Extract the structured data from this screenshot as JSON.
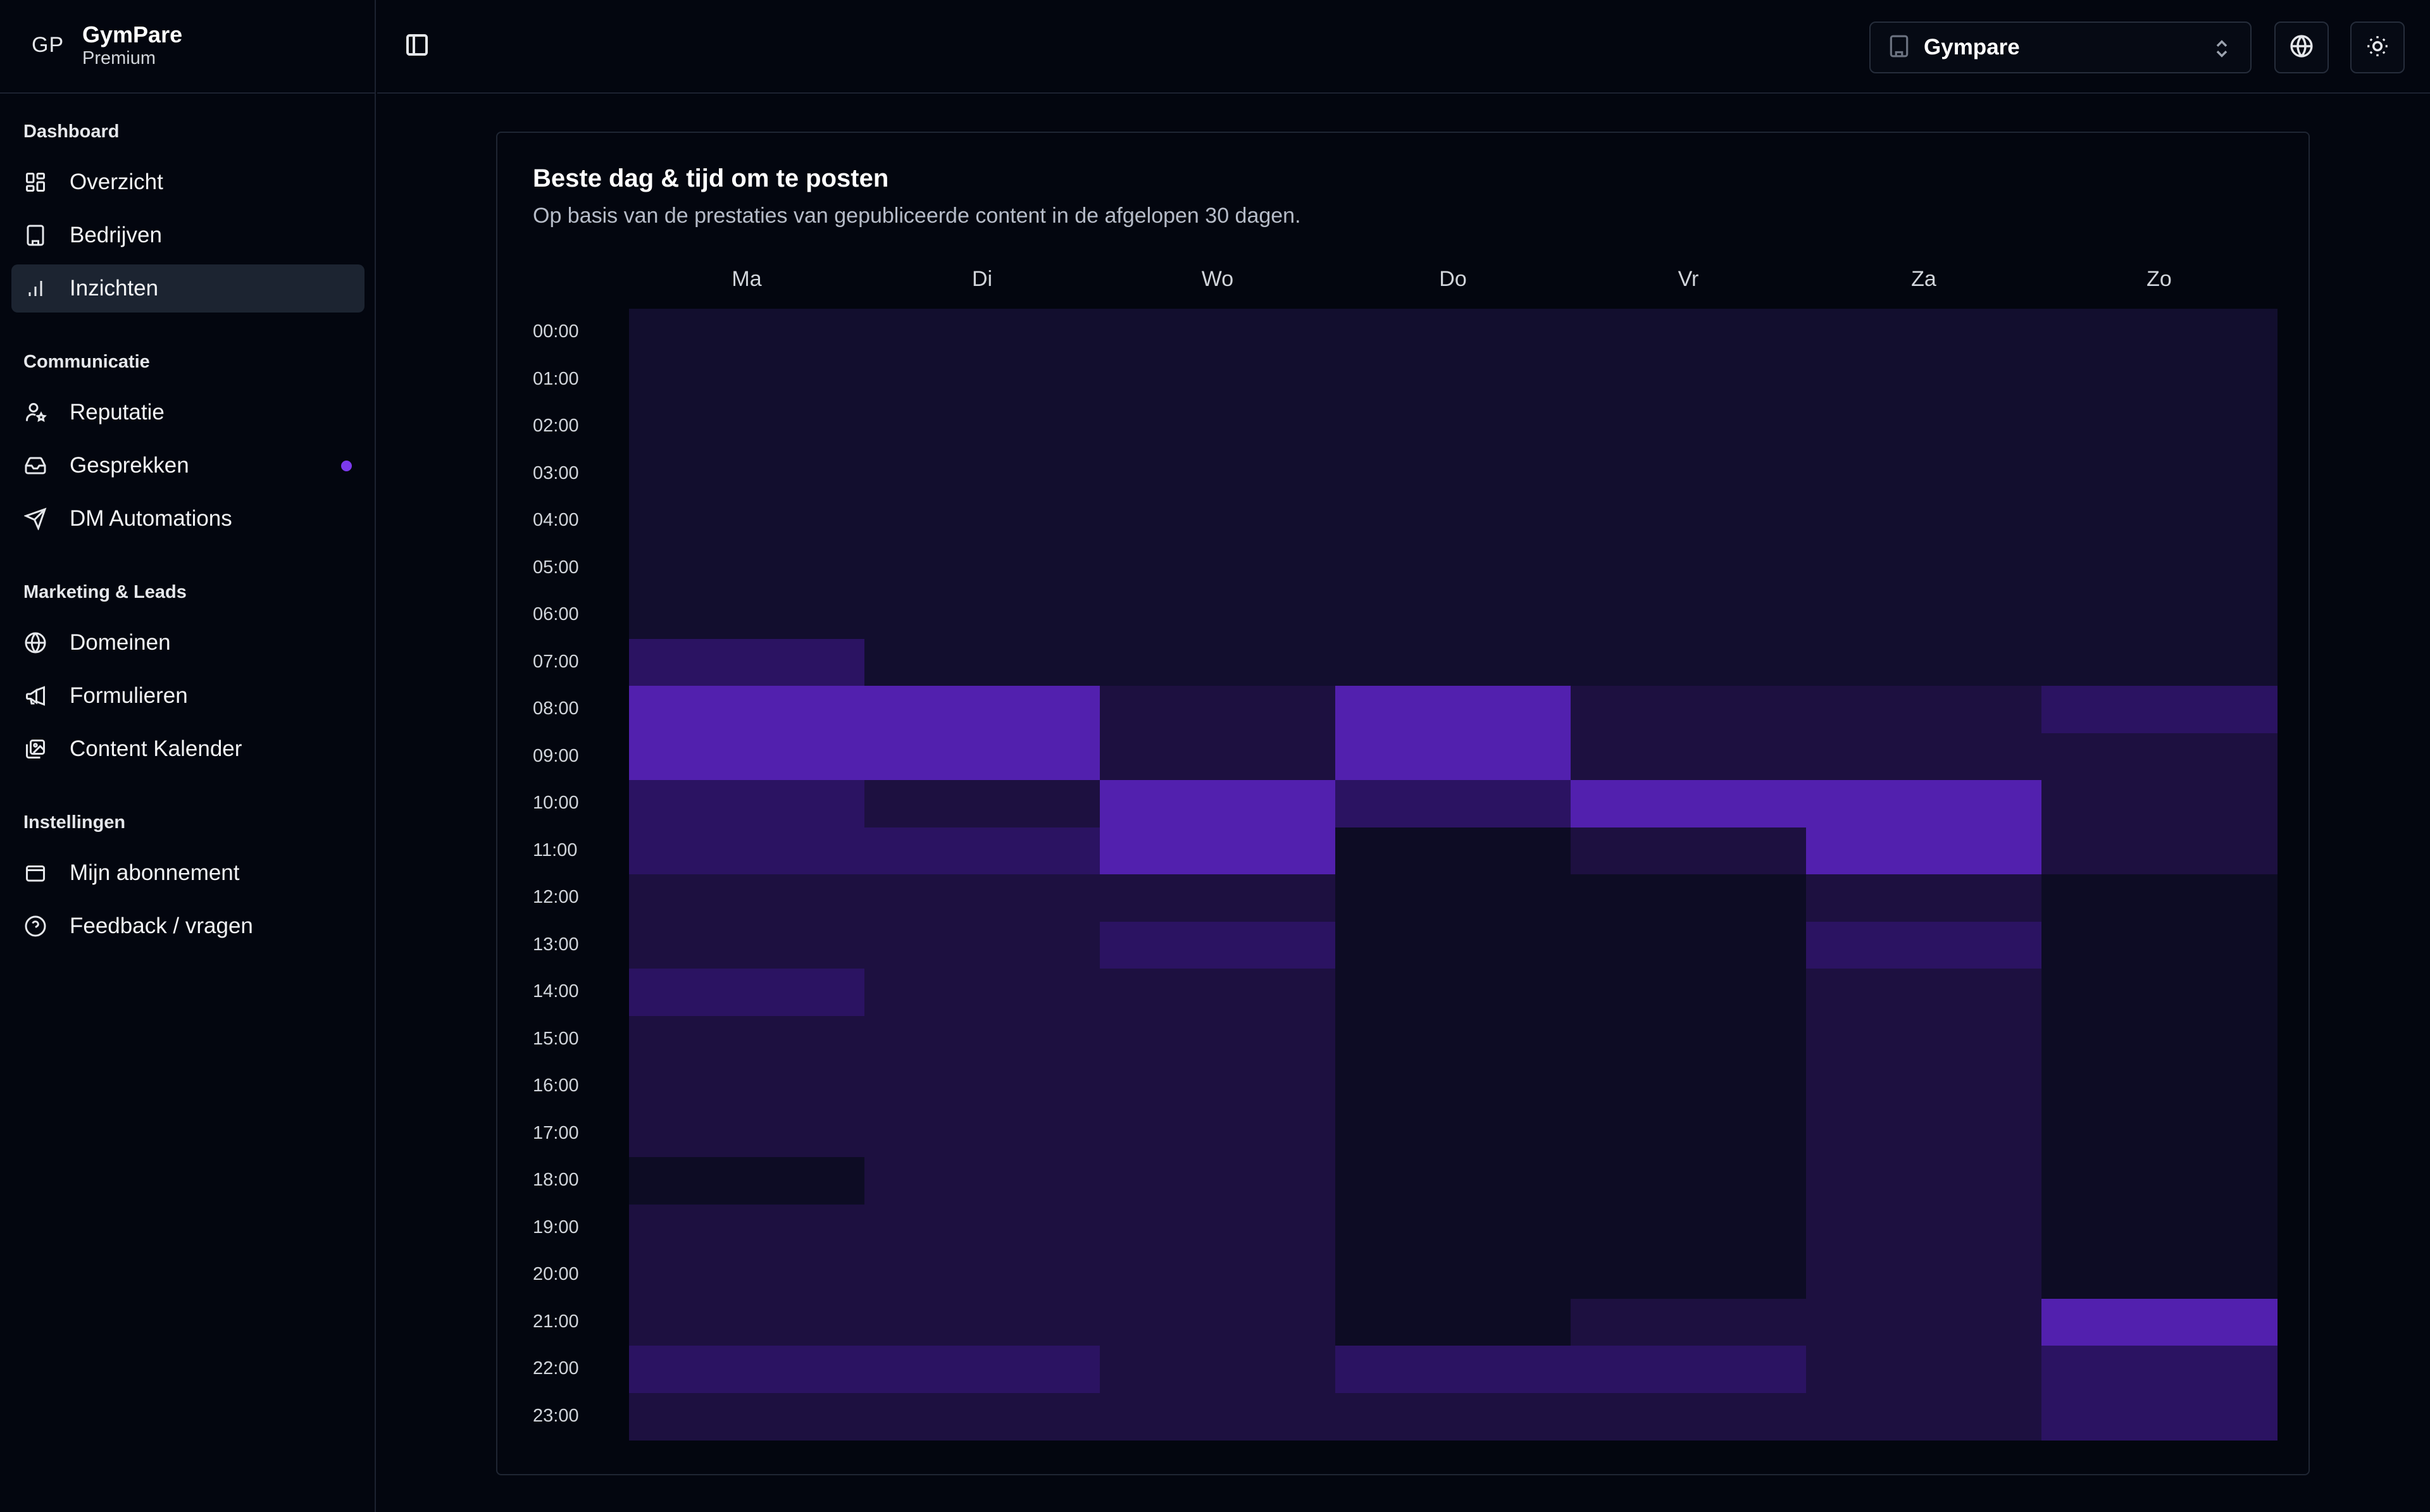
{
  "brand": {
    "logo": "GP",
    "name": "GymPare",
    "plan": "Premium"
  },
  "sidebar": {
    "groups": [
      {
        "label": "Dashboard",
        "items": [
          {
            "label": "Overzicht",
            "icon": "grid-icon",
            "active": false
          },
          {
            "label": "Bedrijven",
            "icon": "building-icon",
            "active": false
          },
          {
            "label": "Inzichten",
            "icon": "bar-chart-icon",
            "active": true
          }
        ]
      },
      {
        "label": "Communicatie",
        "items": [
          {
            "label": "Reputatie",
            "icon": "user-star-icon",
            "active": false
          },
          {
            "label": "Gesprekken",
            "icon": "inbox-icon",
            "active": false,
            "badge": "dot"
          },
          {
            "label": "DM Automations",
            "icon": "send-icon",
            "active": false
          }
        ]
      },
      {
        "label": "Marketing & Leads",
        "items": [
          {
            "label": "Domeinen",
            "icon": "globe-icon",
            "active": false
          },
          {
            "label": "Formulieren",
            "icon": "megaphone-icon",
            "active": false
          },
          {
            "label": "Content Kalender",
            "icon": "images-icon",
            "active": false
          }
        ]
      },
      {
        "label": "Instellingen",
        "items": [
          {
            "label": "Mijn abonnement",
            "icon": "wallet-icon",
            "active": false
          },
          {
            "label": "Feedback / vragen",
            "icon": "help-circle-icon",
            "active": false
          }
        ]
      }
    ]
  },
  "header": {
    "company_select": {
      "value": "Gympare"
    },
    "language_icon": "globe-icon",
    "theme_icon": "sun-icon",
    "sidebar_toggle_icon": "panel-left-icon"
  },
  "card": {
    "title": "Beste dag & tijd om te posten",
    "subtitle": "Op basis van de prestaties van gepubliceerde content in de afgelopen 30 dagen."
  },
  "colors": {
    "accent": "#7c3aed",
    "levels": [
      "#0d0c24",
      "#120e2e",
      "#1d1040",
      "#2b1362",
      "#3b1685",
      "#5220ae"
    ]
  },
  "chart_data": {
    "type": "heatmap",
    "title": "Beste dag & tijd om te posten",
    "x": [
      "Ma",
      "Di",
      "Wo",
      "Do",
      "Vr",
      "Za",
      "Zo"
    ],
    "y": [
      "00:00",
      "01:00",
      "02:00",
      "03:00",
      "04:00",
      "05:00",
      "06:00",
      "07:00",
      "08:00",
      "09:00",
      "10:00",
      "11:00",
      "12:00",
      "13:00",
      "14:00",
      "15:00",
      "16:00",
      "17:00",
      "18:00",
      "19:00",
      "20:00",
      "21:00",
      "22:00",
      "23:00"
    ],
    "scale": "relative intensity 0 (low) to 5 (high)",
    "values": [
      [
        1,
        1,
        1,
        1,
        1,
        1,
        1
      ],
      [
        1,
        1,
        1,
        1,
        1,
        1,
        1
      ],
      [
        1,
        1,
        1,
        1,
        1,
        1,
        1
      ],
      [
        1,
        1,
        1,
        1,
        1,
        1,
        1
      ],
      [
        1,
        1,
        1,
        1,
        1,
        1,
        1
      ],
      [
        1,
        1,
        1,
        1,
        1,
        1,
        1
      ],
      [
        1,
        1,
        1,
        1,
        1,
        1,
        1
      ],
      [
        3,
        1,
        1,
        1,
        1,
        1,
        1
      ],
      [
        5,
        5,
        2,
        5,
        2,
        2,
        3
      ],
      [
        5,
        5,
        2,
        5,
        2,
        2,
        2
      ],
      [
        3,
        2,
        5,
        3,
        5,
        5,
        2
      ],
      [
        3,
        3,
        5,
        0,
        2,
        5,
        2
      ],
      [
        2,
        2,
        2,
        0,
        0,
        2,
        0
      ],
      [
        2,
        2,
        3,
        0,
        0,
        3,
        0
      ],
      [
        3,
        2,
        2,
        0,
        0,
        2,
        0
      ],
      [
        2,
        2,
        2,
        0,
        0,
        2,
        0
      ],
      [
        2,
        2,
        2,
        0,
        0,
        2,
        0
      ],
      [
        2,
        2,
        2,
        0,
        0,
        2,
        0
      ],
      [
        0,
        2,
        2,
        0,
        0,
        2,
        0
      ],
      [
        2,
        2,
        2,
        0,
        0,
        2,
        0
      ],
      [
        2,
        2,
        2,
        0,
        0,
        2,
        0
      ],
      [
        2,
        2,
        2,
        0,
        2,
        2,
        5
      ],
      [
        3,
        3,
        2,
        3,
        3,
        2,
        3
      ],
      [
        2,
        2,
        2,
        2,
        2,
        2,
        3
      ]
    ]
  }
}
